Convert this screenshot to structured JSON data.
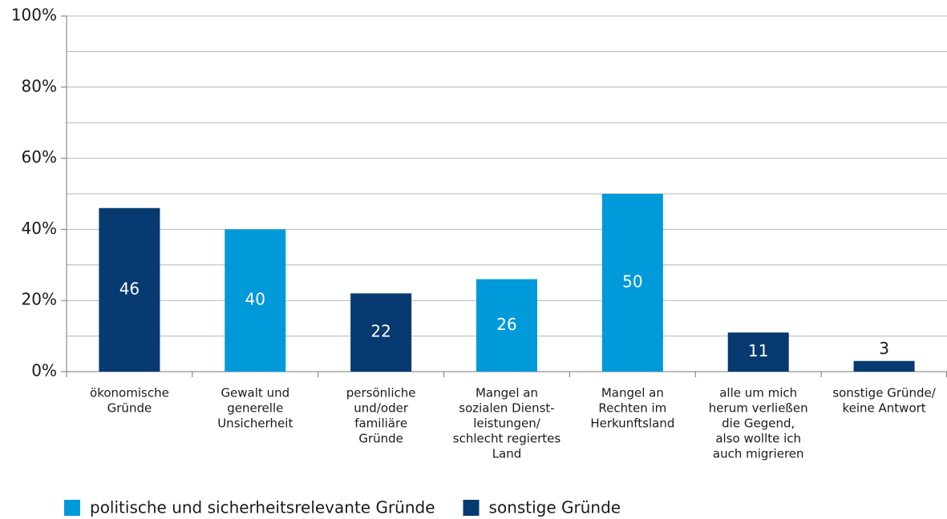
{
  "chart_data": {
    "type": "bar",
    "categories": [
      [
        "ökonomische",
        "Gründe"
      ],
      [
        "Gewalt und",
        "generelle",
        "Unsicherheit"
      ],
      [
        "persönliche",
        "und/oder",
        "familiäre",
        "Gründe"
      ],
      [
        "Mangel an",
        "sozialen Dienst-",
        "leistungen/",
        "schlecht regiertes",
        "Land"
      ],
      [
        "Mangel an",
        "Rechten im",
        "Herkunftsland"
      ],
      [
        "alle um mich",
        "herum verließen",
        "die Gegend,",
        "also wollte ich",
        "auch migrieren"
      ],
      [
        "sonstige Gründe/",
        "keine Antwort"
      ]
    ],
    "series": [
      {
        "name": "politische und sicherheitsrelevante Gründe",
        "color": "#0099d9",
        "values": [
          null,
          40,
          null,
          26,
          50,
          null,
          null
        ]
      },
      {
        "name": "sonstige Gründe",
        "color": "#063a70",
        "values": [
          46,
          null,
          22,
          null,
          null,
          11,
          3
        ]
      }
    ],
    "ylim": [
      0,
      100
    ],
    "yticks": [
      {
        "value": 0,
        "label": "0%"
      },
      {
        "value": 20,
        "label": "20%"
      },
      {
        "value": 40,
        "label": "40%"
      },
      {
        "value": 60,
        "label": "60%"
      },
      {
        "value": 80,
        "label": "80%"
      },
      {
        "value": 100,
        "label": "100%"
      }
    ],
    "minor_grid": [
      10,
      30,
      50,
      70,
      90
    ],
    "grid": true,
    "legend": "bottom"
  }
}
